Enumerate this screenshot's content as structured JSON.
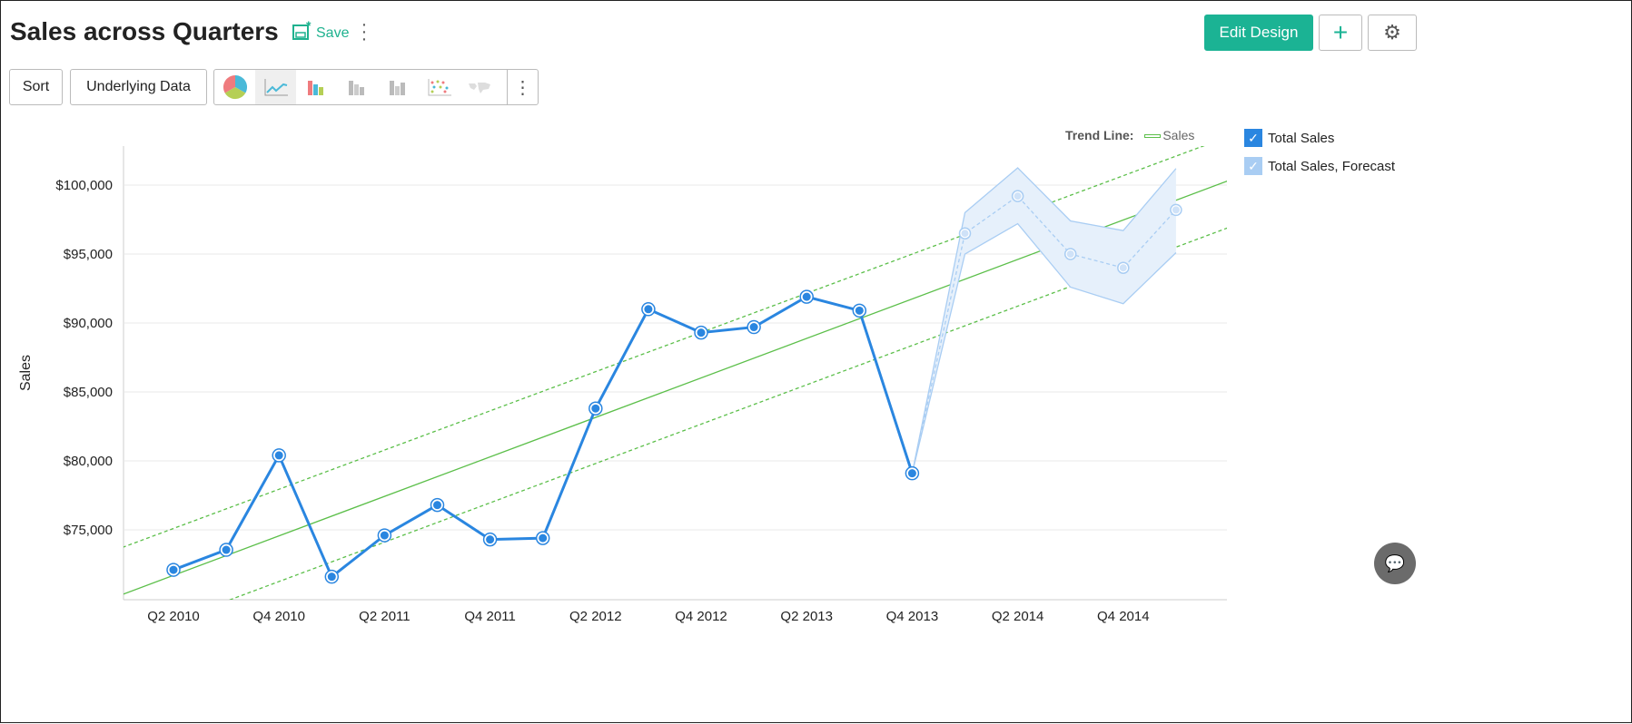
{
  "header": {
    "title": "Sales across Quarters",
    "save_label": "Save",
    "edit_design_label": "Edit Design"
  },
  "toolbar": {
    "sort_label": "Sort",
    "underlying_data_label": "Underlying Data",
    "chart_types": [
      "pie",
      "line",
      "bar",
      "stacked-bar",
      "combo",
      "scatter",
      "map"
    ],
    "active_chart_type": "line"
  },
  "colors": {
    "accent": "#1bb394",
    "series": "#2a86e0",
    "forecast": "#a9cdf3",
    "trend": "#5cbf4a"
  },
  "legend": {
    "trend_label": "Trend Line:",
    "trend_series": "Sales",
    "items": [
      "Total Sales",
      "Total Sales, Forecast"
    ]
  },
  "chart_data": {
    "type": "line",
    "ylabel": "Sales",
    "xlabel": "",
    "ylim": [
      69900,
      102800
    ],
    "yticks": [
      75000,
      80000,
      85000,
      90000,
      95000,
      100000
    ],
    "ytick_labels": [
      "$75,000",
      "$80,000",
      "$85,000",
      "$90,000",
      "$95,000",
      "$100,000"
    ],
    "grid": true,
    "categories": [
      "Q2 2010",
      "Q3 2010",
      "Q4 2010",
      "Q1 2011",
      "Q2 2011",
      "Q3 2011",
      "Q4 2011",
      "Q1 2012",
      "Q2 2012",
      "Q3 2012",
      "Q4 2012",
      "Q1 2013",
      "Q2 2013",
      "Q3 2013",
      "Q4 2013",
      "Q1 2014",
      "Q2 2014",
      "Q3 2014",
      "Q4 2014",
      "Q1 2015"
    ],
    "xtick_labels": [
      "Q2 2010",
      "Q4 2010",
      "Q2 2011",
      "Q4 2011",
      "Q2 2012",
      "Q4 2012",
      "Q2 2013",
      "Q4 2013",
      "Q2 2014",
      "Q4 2014"
    ],
    "series": [
      {
        "name": "Total Sales",
        "values": [
          72100,
          73550,
          80400,
          71600,
          74600,
          76800,
          74300,
          74400,
          83800,
          91000,
          89300,
          89700,
          91900,
          90900,
          79100,
          null,
          null,
          null,
          null,
          null
        ]
      },
      {
        "name": "Total Sales, Forecast",
        "values": [
          null,
          null,
          null,
          null,
          null,
          null,
          null,
          null,
          null,
          null,
          null,
          null,
          null,
          null,
          79100,
          96500,
          99200,
          95000,
          94000,
          98200
        ],
        "upper": [
          null,
          null,
          null,
          null,
          null,
          null,
          null,
          null,
          null,
          null,
          null,
          null,
          null,
          null,
          79100,
          98000,
          101250,
          97400,
          96700,
          101200
        ],
        "lower": [
          null,
          null,
          null,
          null,
          null,
          null,
          null,
          null,
          null,
          null,
          null,
          null,
          null,
          null,
          79100,
          95000,
          97200,
          92600,
          91400,
          95100
        ]
      }
    ],
    "trend_line": {
      "name": "Sales",
      "start": {
        "category": "Q2 2010",
        "value": 71700
      },
      "end": {
        "category": "Q1 2015",
        "value": 98900
      },
      "upper_bound": {
        "start": 75100,
        "end": 102100
      },
      "lower_bound": {
        "start": 68400,
        "end": 95500
      }
    },
    "legend_position": "right"
  }
}
